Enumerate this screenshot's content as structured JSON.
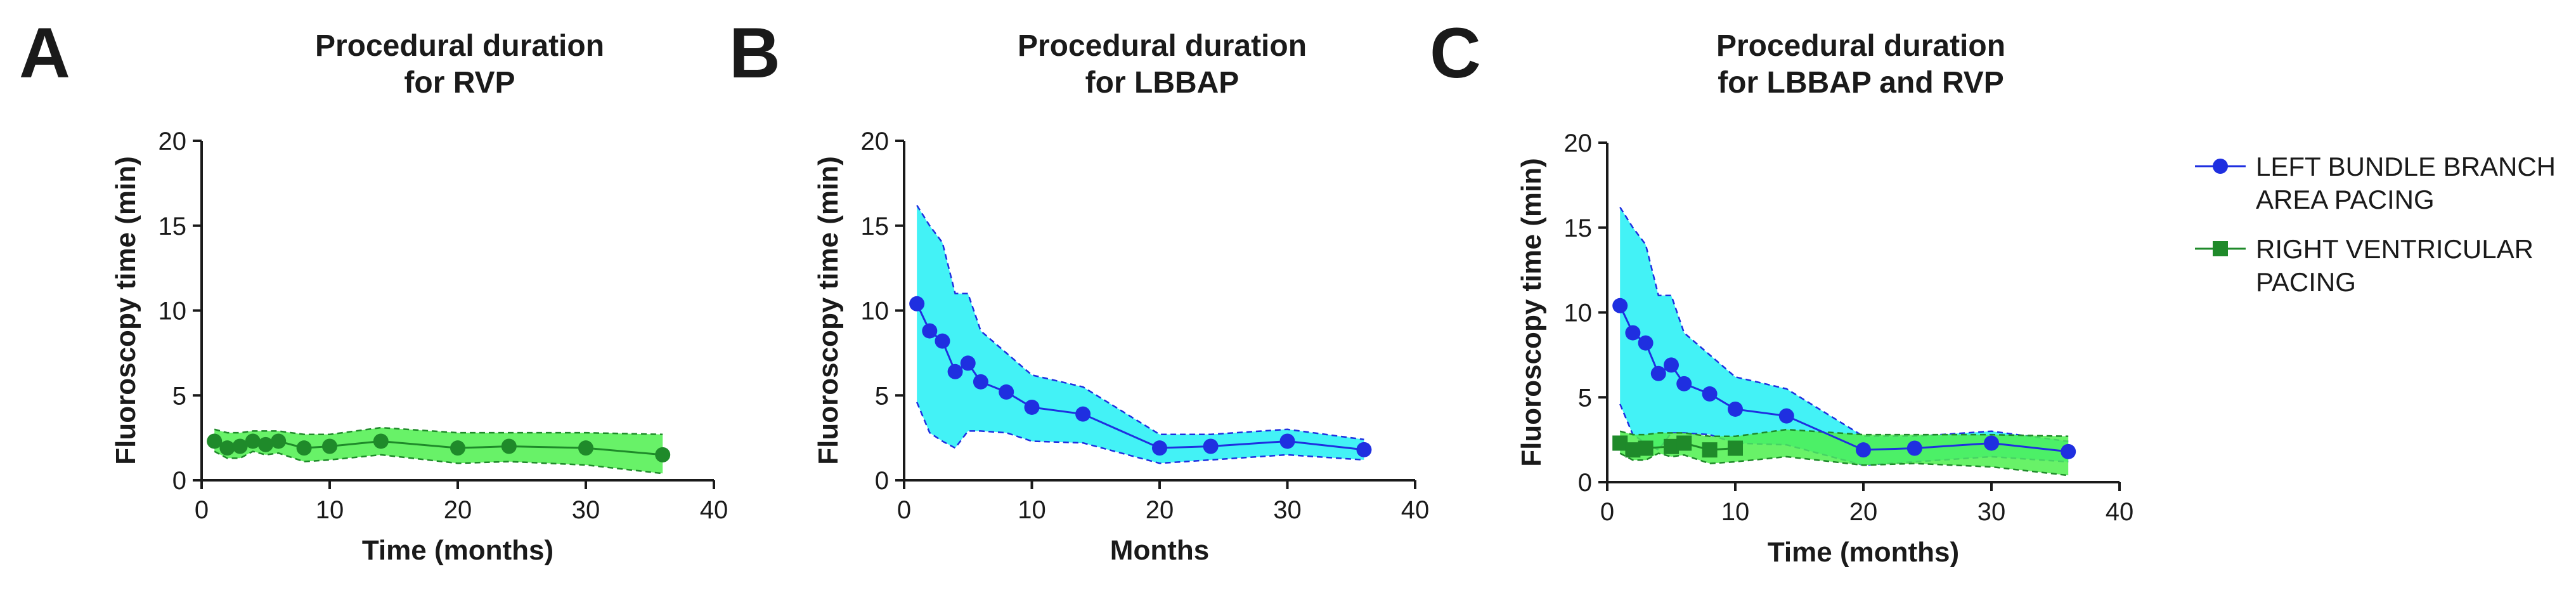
{
  "colors": {
    "lbbap_band": "#22f0f4",
    "lbbap_line": "#1f2fe0",
    "rvp_band": "#4ef04e",
    "rvp_line": "#1f8a2a",
    "axis": "#1a1a1a"
  },
  "legend": {
    "items": [
      {
        "lines": [
          "LEFT BUNDLE BRANCH",
          "AREA PACING"
        ],
        "series": "lbbap",
        "marker": "circle"
      },
      {
        "lines": [
          "RIGHT VENTRICULAR",
          "PACING"
        ],
        "series": "rvp",
        "marker": "square"
      }
    ]
  },
  "chart_data": [
    {
      "panel": "A",
      "type": "line",
      "title": [
        "Procedural duration",
        "for RVP"
      ],
      "xlabel": "Time (months)",
      "ylabel": "Fluoroscopy time (min)",
      "xlim": [
        0,
        40
      ],
      "ylim": [
        0,
        20
      ],
      "xticks": [
        0,
        10,
        20,
        30,
        40
      ],
      "yticks": [
        0,
        5,
        10,
        15,
        20
      ],
      "grid": false,
      "series": [
        {
          "name": "RIGHT VENTRICULAR PACING",
          "key": "rvp",
          "marker": "circle",
          "x": [
            1,
            2,
            3,
            4,
            5,
            6,
            8,
            10,
            14,
            20,
            24,
            30,
            36
          ],
          "y": [
            2.3,
            1.9,
            2.0,
            2.3,
            2.1,
            2.3,
            1.9,
            2.0,
            2.3,
            1.9,
            2.0,
            1.9,
            1.5
          ],
          "band_upper": [
            3.0,
            2.8,
            2.8,
            2.9,
            2.9,
            2.9,
            2.7,
            2.7,
            3.1,
            2.8,
            2.8,
            2.8,
            2.7
          ],
          "band_lower": [
            1.7,
            1.3,
            1.3,
            1.7,
            1.5,
            1.6,
            1.1,
            1.2,
            1.5,
            1.0,
            1.1,
            0.9,
            0.4
          ]
        }
      ]
    },
    {
      "panel": "B",
      "type": "line",
      "title": [
        "Procedural duration",
        "for LBBAP"
      ],
      "xlabel": "Months",
      "ylabel": "Fluoroscopy time (min)",
      "xlim": [
        0,
        40
      ],
      "ylim": [
        0,
        20
      ],
      "xticks": [
        0,
        10,
        20,
        30,
        40
      ],
      "yticks": [
        0,
        5,
        10,
        15,
        20
      ],
      "grid": false,
      "series": [
        {
          "name": "LEFT BUNDLE BRANCH AREA PACING",
          "key": "lbbap",
          "marker": "circle",
          "x": [
            1,
            2,
            3,
            4,
            5,
            6,
            8,
            10,
            14,
            20,
            24,
            30,
            36
          ],
          "y": [
            10.4,
            8.8,
            8.2,
            6.4,
            6.9,
            5.8,
            5.2,
            4.3,
            3.9,
            1.9,
            2.0,
            2.3,
            1.8
          ],
          "band_upper": [
            16.2,
            15.0,
            14.0,
            11.0,
            11.0,
            8.8,
            7.5,
            6.2,
            5.5,
            2.7,
            2.7,
            3.0,
            2.4
          ],
          "band_lower": [
            4.6,
            2.8,
            2.3,
            1.9,
            2.9,
            2.9,
            2.8,
            2.3,
            2.2,
            1.0,
            1.2,
            1.5,
            1.2
          ]
        }
      ]
    },
    {
      "panel": "C",
      "type": "line",
      "title": [
        "Procedural duration",
        "for LBBAP and RVP"
      ],
      "xlabel": "Time (months)",
      "ylabel": "Fluoroscopy time (min)",
      "xlim": [
        0,
        40
      ],
      "ylim": [
        0,
        20
      ],
      "xticks": [
        0,
        10,
        20,
        30,
        40
      ],
      "yticks": [
        0,
        5,
        10,
        15,
        20
      ],
      "grid": false,
      "legend_position": "right",
      "series": [
        {
          "name": "LEFT BUNDLE BRANCH AREA PACING",
          "key": "lbbap",
          "marker": "circle",
          "x": [
            1,
            2,
            3,
            4,
            5,
            6,
            8,
            10,
            14,
            20,
            24,
            30,
            36
          ],
          "y": [
            10.4,
            8.8,
            8.2,
            6.4,
            6.9,
            5.8,
            5.2,
            4.3,
            3.9,
            1.9,
            2.0,
            2.3,
            1.8
          ],
          "band_upper": [
            16.2,
            15.0,
            14.0,
            11.0,
            11.0,
            8.8,
            7.5,
            6.2,
            5.5,
            2.7,
            2.7,
            3.0,
            2.4
          ],
          "band_lower": [
            4.6,
            2.8,
            2.3,
            1.9,
            2.9,
            2.9,
            2.8,
            2.3,
            2.2,
            1.0,
            1.2,
            1.5,
            1.2
          ]
        },
        {
          "name": "RIGHT VENTRICULAR PACING",
          "key": "rvp",
          "marker": "square",
          "x": [
            1,
            2,
            3,
            5,
            6,
            8,
            10
          ],
          "y": [
            2.3,
            1.9,
            2.0,
            2.1,
            2.3,
            1.9,
            2.0
          ],
          "band_upper": [
            3.0,
            2.8,
            2.8,
            2.9,
            2.9,
            2.7,
            2.7
          ],
          "band_lower": [
            1.7,
            1.3,
            1.3,
            1.5,
            1.6,
            1.1,
            1.2
          ],
          "band_x": [
            1,
            2,
            3,
            4,
            5,
            6,
            8,
            10,
            14,
            20,
            24,
            30,
            36
          ],
          "band_full_upper": [
            3.0,
            2.8,
            2.8,
            2.9,
            2.9,
            2.9,
            2.7,
            2.7,
            3.1,
            2.8,
            2.8,
            2.8,
            2.7
          ],
          "band_full_lower": [
            1.7,
            1.3,
            1.3,
            1.7,
            1.5,
            1.6,
            1.1,
            1.2,
            1.5,
            1.0,
            1.1,
            0.9,
            0.4
          ]
        }
      ]
    }
  ]
}
